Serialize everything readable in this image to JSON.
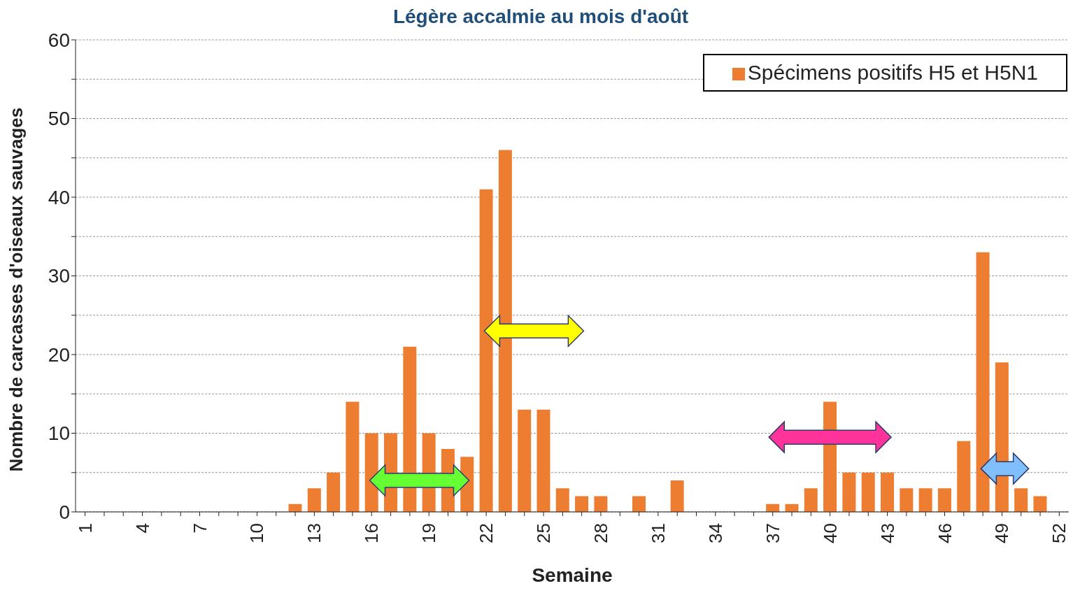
{
  "chart_data": {
    "type": "bar",
    "title": "Légère accalmie au mois d'août",
    "xlabel": "Semaine",
    "ylabel": "Nombre de carcasses d'oiseaux sauvages",
    "categories": [
      "1",
      null,
      null,
      "4",
      null,
      null,
      "7",
      null,
      null,
      "10",
      null,
      null,
      "13",
      null,
      null,
      "16",
      null,
      null,
      "19",
      null,
      null,
      "22",
      null,
      null,
      "25",
      null,
      null,
      "28",
      null,
      null,
      "31",
      null,
      null,
      "34",
      null,
      null,
      "37",
      null,
      null,
      "40",
      null,
      null,
      "43",
      null,
      null,
      "46",
      null,
      null,
      "49",
      null,
      null,
      "52"
    ],
    "series": [
      {
        "name": "Spécimens positifs H5 et H5N1",
        "color": "#ed7d31",
        "values": [
          0,
          0,
          0,
          0,
          0,
          0,
          0,
          0,
          0,
          0,
          0,
          1,
          3,
          5,
          14,
          10,
          10,
          21,
          10,
          8,
          7,
          41,
          46,
          13,
          13,
          3,
          2,
          2,
          0,
          2,
          0,
          4,
          0,
          0,
          0,
          0,
          1,
          1,
          3,
          14,
          5,
          5,
          5,
          3,
          3,
          3,
          9,
          33,
          19,
          3,
          2,
          0
        ]
      }
    ],
    "ylim": [
      0,
      60
    ],
    "yticks": [
      0,
      {
        "value": 5,
        "label": null
      },
      10,
      {
        "value": 15,
        "label": null
      },
      20,
      {
        "value": 25,
        "label": null
      },
      30,
      {
        "value": 35,
        "label": null
      },
      40,
      {
        "value": 45,
        "label": null
      },
      50,
      {
        "value": 55,
        "label": null
      },
      60
    ],
    "grid": "y",
    "legend": "top right"
  }
}
